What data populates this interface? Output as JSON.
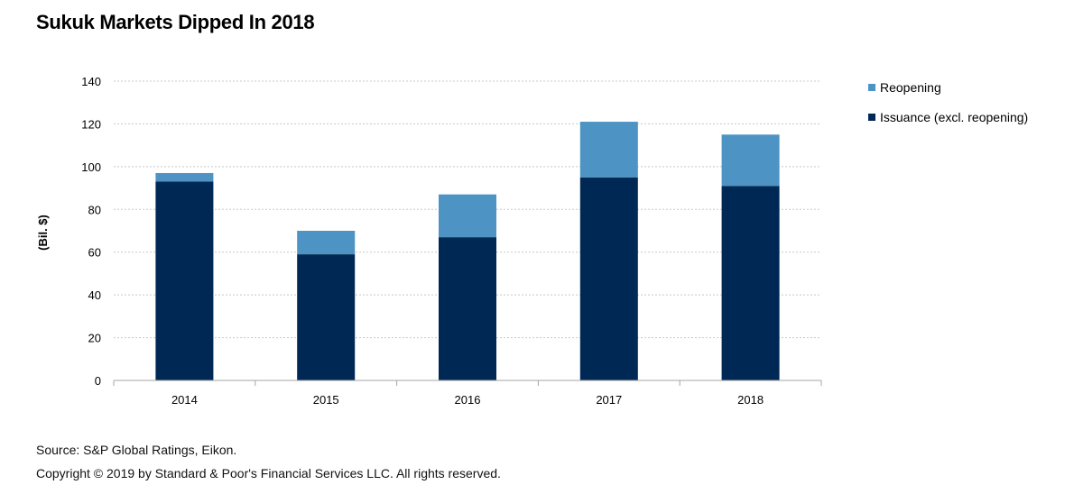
{
  "title": "Sukuk Markets Dipped In 2018",
  "footer": {
    "source": "Source: S&P Global Ratings, Eikon.",
    "copyright": "Copyright © 2019 by Standard & Poor's Financial Services LLC. All rights reserved."
  },
  "chart_data": {
    "type": "bar",
    "stacked": true,
    "categories": [
      "2014",
      "2015",
      "2016",
      "2017",
      "2018"
    ],
    "series": [
      {
        "name": "Issuance (excl. reopening)",
        "color": "#002855",
        "values": [
          93,
          59,
          67,
          95,
          91
        ]
      },
      {
        "name": "Reopening",
        "color": "#4d93c4",
        "values": [
          4,
          11,
          20,
          26,
          24
        ]
      }
    ],
    "title": "Sukuk Markets Dipped In 2018",
    "xlabel": "",
    "ylabel": "(Bil. $)",
    "ylim": [
      0,
      140
    ],
    "yticks": [
      0,
      20,
      40,
      60,
      80,
      100,
      120,
      140
    ],
    "grid": true,
    "legend": {
      "position": "right",
      "entries": [
        "Reopening",
        "Issuance (excl. reopening)"
      ]
    }
  }
}
